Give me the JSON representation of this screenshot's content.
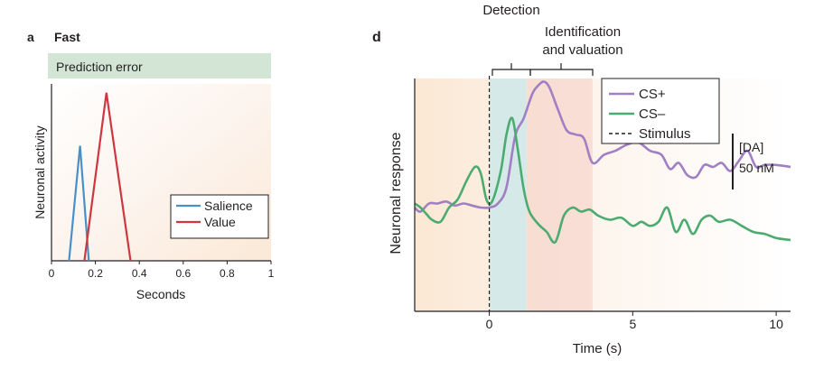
{
  "panel_a": {
    "letter": "a",
    "subtitle": "Fast",
    "banner": "Prediction error"
  },
  "panel_d": {
    "letter": "d",
    "top_label": "Detection",
    "phase_label_line1": "Identification",
    "phase_label_line2": "and valuation",
    "scale_bar_line1": "[DA]",
    "scale_bar_line2": "50 nM"
  },
  "chart_data": [
    {
      "type": "line",
      "title": "Fast",
      "xlabel": "Seconds",
      "ylabel": "Neuronal activity",
      "xlim": [
        0,
        1
      ],
      "ylim": [
        0,
        1
      ],
      "xticks": [
        "0",
        "0.2",
        "0.4",
        "0.6",
        "0.8",
        "1"
      ],
      "legend_position": "bottom-right",
      "series": [
        {
          "name": "Salience",
          "color": "#4a90c8",
          "x": [
            0.08,
            0.13,
            0.17
          ],
          "y": [
            0,
            0.65,
            0
          ]
        },
        {
          "name": "Value",
          "color": "#d0363f",
          "x": [
            0.15,
            0.25,
            0.36
          ],
          "y": [
            0,
            0.95,
            0
          ]
        }
      ]
    },
    {
      "type": "line",
      "xlabel": "Time (s)",
      "ylabel": "Neuronal response",
      "xlim": [
        -2.6,
        10.5
      ],
      "xticks": [
        "0",
        "5",
        "10"
      ],
      "legend_position": "top-right",
      "shaded_regions": [
        {
          "x0": 0,
          "x1": 1.3,
          "color": "#cfe7ea"
        },
        {
          "x0": 1.3,
          "x1": 3.6,
          "color": "#f7d9d0"
        }
      ],
      "stimulus_line": {
        "name": "Stimulus",
        "x": 0,
        "style": "dashed"
      },
      "series": [
        {
          "name": "CS+",
          "color": "#a07fc3",
          "x": [
            -2.6,
            -2.4,
            -2.1,
            -1.8,
            -1.5,
            -1.2,
            -0.9,
            -0.6,
            -0.3,
            0,
            0.3,
            0.6,
            0.9,
            1.2,
            1.5,
            1.7,
            1.9,
            2.1,
            2.4,
            2.7,
            3.0,
            3.3,
            3.6,
            4.0,
            4.4,
            4.8,
            5.2,
            5.6,
            6.0,
            6.3,
            6.6,
            6.9,
            7.2,
            7.5,
            7.8,
            8.1,
            8.4,
            8.7,
            9.0,
            9.3,
            9.6,
            10.0,
            10.5
          ],
          "y": [
            12,
            10,
            14,
            14,
            15,
            13,
            14,
            13,
            12,
            12,
            14,
            22,
            47,
            56,
            68,
            72,
            74,
            71,
            60,
            50,
            48,
            46,
            34,
            38,
            40,
            43,
            44,
            40,
            38,
            31,
            34,
            28,
            27,
            33,
            32,
            34,
            30,
            35,
            40,
            32,
            33,
            33,
            32
          ]
        },
        {
          "name": "CS–",
          "color": "#4cab70",
          "x": [
            -2.6,
            -2.4,
            -2.2,
            -2.0,
            -1.7,
            -1.4,
            -1.1,
            -0.8,
            -0.5,
            -0.3,
            -0.1,
            0.1,
            0.4,
            0.6,
            0.8,
            1.0,
            1.2,
            1.4,
            1.7,
            2.0,
            2.3,
            2.6,
            2.9,
            3.2,
            3.5,
            3.8,
            4.2,
            4.6,
            5.0,
            5.3,
            5.6,
            5.9,
            6.2,
            6.5,
            6.8,
            7.1,
            7.4,
            7.7,
            8.0,
            8.4,
            8.8,
            9.2,
            9.6,
            10.0,
            10.5
          ],
          "y": [
            14,
            12,
            9,
            6,
            5,
            12,
            16,
            25,
            32,
            29,
            16,
            15,
            30,
            48,
            56,
            40,
            21,
            10,
            4,
            0,
            -5,
            8,
            12,
            10,
            11,
            8,
            6,
            7,
            3,
            5,
            3,
            5,
            12,
            0,
            6,
            -1,
            6,
            8,
            5,
            6,
            3,
            0,
            -1,
            -3,
            -4
          ]
        }
      ]
    }
  ]
}
